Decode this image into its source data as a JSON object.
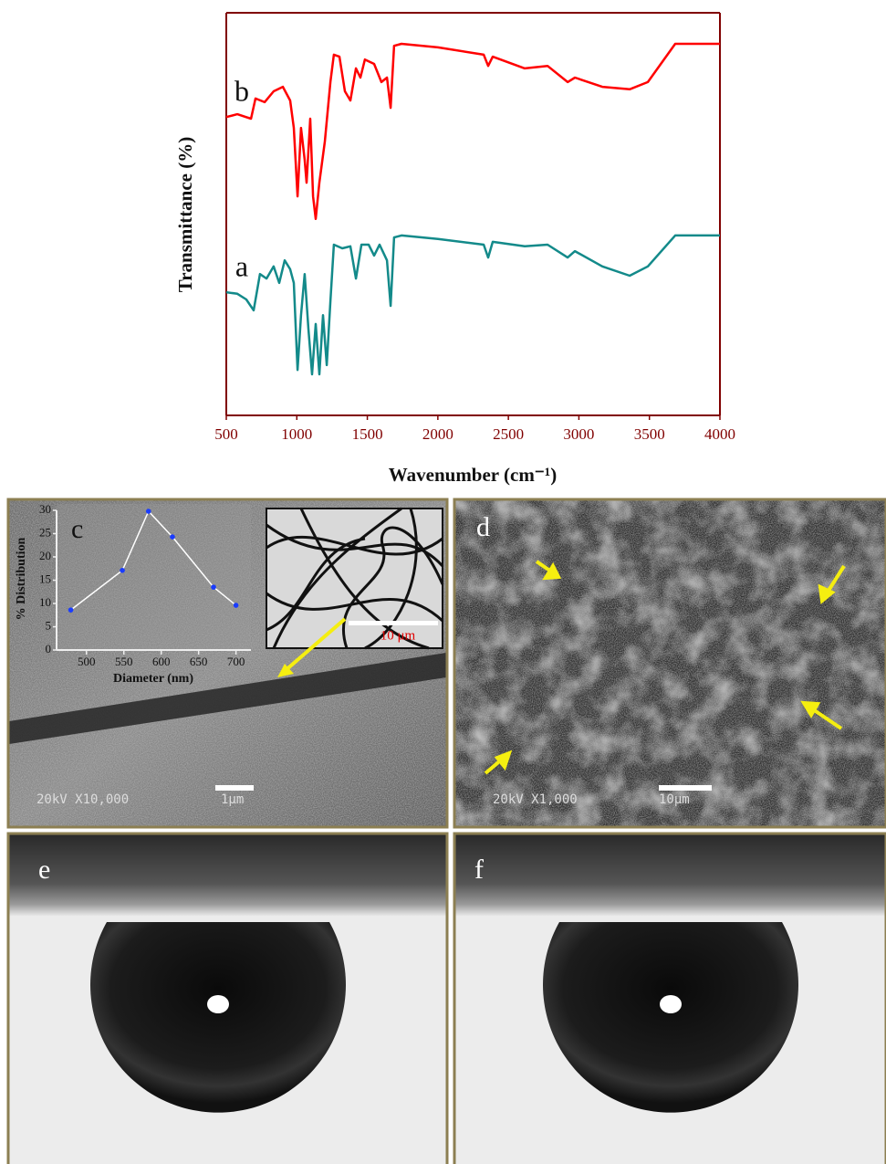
{
  "chart_data": [
    {
      "type": "line",
      "y_label": "Transmittance (%)",
      "x_label": "Wavenumber (cm⁻¹)",
      "xlim": [
        500,
        4000
      ],
      "xticks": [
        500,
        1000,
        1500,
        2000,
        2500,
        3000,
        3500,
        4000
      ],
      "ylim": [
        0,
        100
      ],
      "series": [
        {
          "name": "b",
          "color": "#ff0000",
          "x": [
            500,
            578,
            675,
            707,
            772,
            836,
            901,
            953,
            979,
            1005,
            1030,
            1056,
            1069,
            1095,
            1115,
            1134,
            1160,
            1199,
            1238,
            1263,
            1302,
            1341,
            1380,
            1419,
            1451,
            1483,
            1548,
            1600,
            1639,
            1665,
            1690,
            1742,
            2001,
            2325,
            2357,
            2389,
            2616,
            2778,
            2920,
            2972,
            3166,
            3360,
            3489,
            3683,
            4000
          ],
          "values": [
            74.1,
            74.8,
            73.7,
            78.7,
            77.8,
            80.5,
            81.6,
            78.2,
            71.4,
            54.4,
            71.4,
            63.5,
            57.8,
            73.7,
            54.4,
            48.8,
            57.8,
            68.0,
            82.8,
            89.6,
            89.1,
            80.5,
            78.2,
            86.2,
            83.9,
            88.4,
            87.3,
            82.8,
            83.9,
            76.4,
            91.8,
            92.3,
            91.4,
            89.6,
            86.8,
            89.1,
            86.2,
            86.8,
            82.8,
            83.9,
            81.6,
            81.0,
            82.8,
            92.3,
            92.3
          ]
        },
        {
          "name": "a",
          "color": "#138a8a",
          "x": [
            500,
            578,
            642,
            694,
            739,
            785,
            836,
            875,
            914,
            953,
            979,
            1005,
            1030,
            1056,
            1082,
            1108,
            1134,
            1160,
            1186,
            1212,
            1238,
            1263,
            1322,
            1380,
            1419,
            1458,
            1509,
            1548,
            1587,
            1639,
            1665,
            1690,
            1742,
            2001,
            2325,
            2357,
            2389,
            2616,
            2778,
            2920,
            2972,
            3166,
            3360,
            3489,
            3683,
            4000
          ],
          "values": [
            30.6,
            30.2,
            28.8,
            26.1,
            35.1,
            34.0,
            37.0,
            32.9,
            38.5,
            36.3,
            32.9,
            11.3,
            24.9,
            35.1,
            21.5,
            10.2,
            22.7,
            10.2,
            24.9,
            12.5,
            28.3,
            42.4,
            41.5,
            42.0,
            34.0,
            42.4,
            42.4,
            39.7,
            42.4,
            38.5,
            27.2,
            44.2,
            44.7,
            43.8,
            42.4,
            39.2,
            43.1,
            42.0,
            42.4,
            39.2,
            40.8,
            37.0,
            34.7,
            37.0,
            44.7,
            44.7
          ]
        }
      ]
    },
    {
      "type": "line",
      "x_label": "Diameter (nm)",
      "y_label": "% Distribution",
      "xlim": [
        460,
        720
      ],
      "xticks": [
        500,
        550,
        600,
        650,
        700
      ],
      "ylim": [
        0,
        30
      ],
      "yticks": [
        0,
        5,
        10,
        15,
        20,
        25,
        30
      ],
      "series": [
        {
          "color": "#ffffff",
          "marker_color": "#1a3cff",
          "x": [
            479,
            548,
            583,
            615,
            670,
            700
          ],
          "values": [
            8.6,
            17.1,
            29.8,
            24.3,
            13.5,
            9.6
          ]
        }
      ]
    }
  ],
  "panels": [
    {
      "label": "c",
      "sem_info": "20kV X10,000",
      "scale_bar": "1μm",
      "inset_scale_bar": "10 μm"
    },
    {
      "label": "d",
      "sem_info": "20kV X1,000",
      "scale_bar": "10μm"
    },
    {
      "label": "e"
    },
    {
      "label": "f"
    }
  ]
}
